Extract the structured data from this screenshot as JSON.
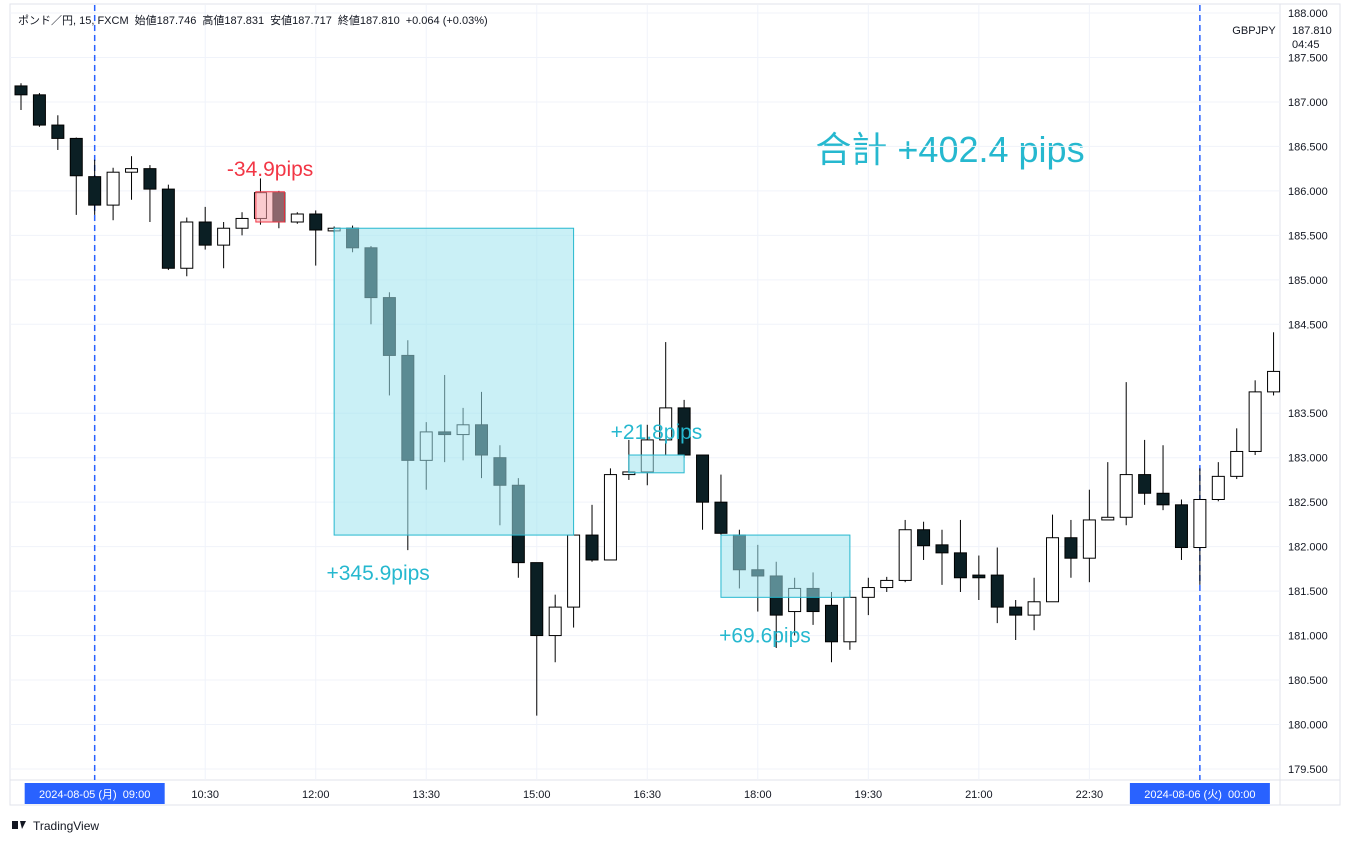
{
  "chart_data": {
    "type": "candlestick",
    "header": [
      "ポンド／円, 15, FXCM",
      "始値187.746",
      "高値187.831",
      "安値187.717",
      "終値187.810",
      "+0.064 (+0.03%)"
    ],
    "symbol": "GBPJPY",
    "price_label": "187.810",
    "countdown": "04:45",
    "watermark": "TradingView",
    "total_label": "合計 +402.4 pips",
    "categories": [
      null,
      null,
      null,
      null,
      "2024-08-05 (月)  09:00",
      null,
      null,
      null,
      null,
      null,
      "10:30",
      null,
      null,
      null,
      null,
      null,
      "12:00",
      null,
      null,
      null,
      null,
      null,
      "13:30",
      null,
      null,
      null,
      null,
      null,
      "15:00",
      null,
      null,
      null,
      null,
      null,
      "16:30",
      null,
      null,
      null,
      null,
      null,
      "18:00",
      null,
      null,
      null,
      null,
      null,
      "19:30",
      null,
      null,
      null,
      null,
      null,
      "21:00",
      null,
      null,
      null,
      null,
      null,
      "22:30",
      null,
      null,
      null,
      null,
      null,
      "2024-08-06 (火)  00:00",
      null,
      null,
      null,
      null
    ],
    "open": [
      187.18,
      187.08,
      186.74,
      186.59,
      186.16,
      185.84,
      186.21,
      186.25,
      186.02,
      185.13,
      185.65,
      185.39,
      185.58,
      185.69,
      185.98,
      185.65,
      185.74,
      185.55,
      185.58,
      185.36,
      184.8,
      184.15,
      182.97,
      183.29,
      183.26,
      183.37,
      183.0,
      182.69,
      181.82,
      181.0,
      181.32,
      182.13,
      181.85,
      182.81,
      182.84,
      183.2,
      183.56,
      183.03,
      182.5,
      182.13,
      181.74,
      181.67,
      181.27,
      181.53,
      181.34,
      180.93,
      181.43,
      181.54,
      181.62,
      182.19,
      182.02,
      181.93,
      181.68,
      181.68,
      181.32,
      181.23,
      181.38,
      182.1,
      181.87,
      182.3,
      182.33,
      182.81,
      182.6,
      182.47,
      181.99,
      182.53,
      182.79,
      183.07,
      183.74
    ],
    "high": [
      187.21,
      187.1,
      186.85,
      186.6,
      186.35,
      186.26,
      186.39,
      186.29,
      186.07,
      185.7,
      185.82,
      185.65,
      185.76,
      186.14,
      186.0,
      185.76,
      185.78,
      185.6,
      185.61,
      185.38,
      184.86,
      184.32,
      183.4,
      183.93,
      183.56,
      183.74,
      183.14,
      182.77,
      181.82,
      181.46,
      182.13,
      182.47,
      182.88,
      183.2,
      183.37,
      184.3,
      183.65,
      183.03,
      182.81,
      182.19,
      182.02,
      181.83,
      181.65,
      181.71,
      181.49,
      181.51,
      181.65,
      181.66,
      182.3,
      182.28,
      182.19,
      182.3,
      181.9,
      181.99,
      181.4,
      181.65,
      182.36,
      182.3,
      182.64,
      182.95,
      183.85,
      183.2,
      183.14,
      182.53,
      182.88,
      182.95,
      183.33,
      183.87,
      184.41
    ],
    "low": [
      186.91,
      186.72,
      186.46,
      185.73,
      185.73,
      185.67,
      185.9,
      185.65,
      185.11,
      185.04,
      185.34,
      185.13,
      185.5,
      185.62,
      185.58,
      185.63,
      185.16,
      185.53,
      185.31,
      184.5,
      183.7,
      181.96,
      182.64,
      182.95,
      182.97,
      182.77,
      182.24,
      181.65,
      180.1,
      180.7,
      181.09,
      181.83,
      181.85,
      182.75,
      182.69,
      183.03,
      183.0,
      182.19,
      182.13,
      181.53,
      181.27,
      180.86,
      181.0,
      181.12,
      180.7,
      180.84,
      181.23,
      181.49,
      181.6,
      181.85,
      181.57,
      181.49,
      181.4,
      181.14,
      180.95,
      181.06,
      181.38,
      181.65,
      181.6,
      182.3,
      182.24,
      182.47,
      182.41,
      181.85,
      181.57,
      182.51,
      182.76,
      183.03,
      183.7
    ],
    "close": [
      187.08,
      186.74,
      186.59,
      186.17,
      185.84,
      186.21,
      186.25,
      186.02,
      185.13,
      185.65,
      185.39,
      185.58,
      185.69,
      185.98,
      185.65,
      185.74,
      185.56,
      185.58,
      185.36,
      184.8,
      184.15,
      182.97,
      183.29,
      183.26,
      183.37,
      183.03,
      182.69,
      181.82,
      181.0,
      181.32,
      182.13,
      181.85,
      182.81,
      182.84,
      183.2,
      183.56,
      183.03,
      182.5,
      182.15,
      181.74,
      181.67,
      181.23,
      181.53,
      181.27,
      180.93,
      181.43,
      181.54,
      181.62,
      182.19,
      182.01,
      181.93,
      181.65,
      181.65,
      181.32,
      181.23,
      181.38,
      182.1,
      181.87,
      182.3,
      182.33,
      182.81,
      182.6,
      182.47,
      181.99,
      182.53,
      182.79,
      183.07,
      183.74,
      183.97
    ],
    "up_color": "#ffffff",
    "down_color": "#0b1f24",
    "border_color": "#000000",
    "session_breaks": [
      4,
      64
    ],
    "ylim": [
      179.376,
      188.09
    ],
    "yticks": [
      {
        "value": 179.5,
        "label": "179.500"
      },
      {
        "value": 180,
        "label": "180.000"
      },
      {
        "value": 180.5,
        "label": "180.500"
      },
      {
        "value": 181,
        "label": "181.000"
      },
      {
        "value": 181.5,
        "label": "181.500"
      },
      {
        "value": 182,
        "label": "182.000"
      },
      {
        "value": 182.5,
        "label": "182.500"
      },
      {
        "value": 183,
        "label": "183.000"
      },
      {
        "value": 183.5,
        "label": "183.500"
      },
      {
        "value": 184.5,
        "label": "184.500"
      },
      {
        "value": 185,
        "label": "185.000"
      },
      {
        "value": 185.5,
        "label": "185.500"
      },
      {
        "value": 186,
        "label": "186.000"
      },
      {
        "value": 186.5,
        "label": "186.500"
      },
      {
        "value": 187,
        "label": "187.000"
      },
      {
        "value": 187.5,
        "label": "187.500"
      },
      {
        "value": 188,
        "label": "188.000"
      }
    ],
    "grid": true,
    "annotations": [
      {
        "label": "-34.9pips",
        "start": 12.75,
        "end": 14.3,
        "high": 185.99,
        "low": 185.65,
        "color": "#f23645",
        "label_position": "above"
      },
      {
        "label": "+345.9pips",
        "start": 17,
        "end": 30,
        "high": 185.58,
        "low": 182.13,
        "color": "#26b8cf",
        "label_position": "below"
      },
      {
        "label": "+21.8pips",
        "start": 33,
        "end": 36,
        "high": 183.03,
        "low": 182.83,
        "color": "#26b8cf",
        "label_position": "above"
      },
      {
        "label": "+69.6pips",
        "start": 38,
        "end": 45,
        "high": 182.13,
        "low": 181.43,
        "color": "#26b8cf",
        "label_position": "below"
      }
    ]
  }
}
